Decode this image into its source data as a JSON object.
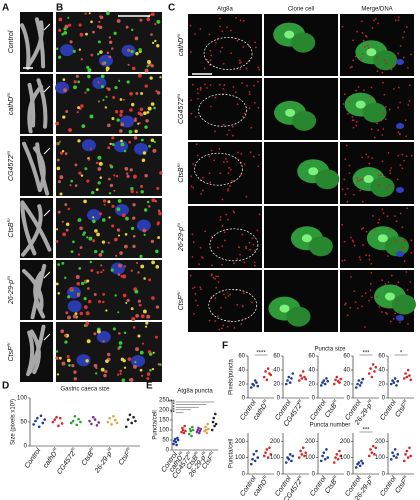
{
  "panel_letters": [
    "A",
    "B",
    "C",
    "D",
    "E",
    "F"
  ],
  "genotypes": [
    "Control",
    "cathD",
    "CG4572",
    "CtsB",
    "26-29-p",
    "CtsF"
  ],
  "genotype_suffixes": [
    null,
    "RI",
    "RI",
    "RI",
    "RI",
    "RI"
  ],
  "panel_c_columns": [
    "Atg8a",
    "Clone cell",
    "Merge/DNA"
  ],
  "panel_f_titles": [
    "Puncta size",
    "Puncta number"
  ],
  "chart_data": [
    {
      "type": "strip",
      "title": "Gastric caeca size",
      "ylabel": "Size (pixels x10³)",
      "categories": [
        "Control",
        "cathD",
        "CG4572",
        "CtsB",
        "26-29-p",
        "CtsF"
      ],
      "category_suffixes": [
        null,
        "RI",
        "RI",
        "RI",
        "RI",
        "RI"
      ],
      "colors": [
        "#1f3a93",
        "#d62728",
        "#2ca02c",
        "#7b3294",
        "#e6a23c",
        "#222222"
      ],
      "values": [
        [
          45,
          52,
          58,
          40,
          63,
          48,
          55
        ],
        [
          50,
          55,
          60,
          42,
          58,
          47
        ],
        [
          48,
          52,
          62,
          44,
          56,
          50
        ],
        [
          52,
          46,
          60,
          55,
          43,
          49
        ],
        [
          50,
          58,
          45,
          62,
          54,
          48
        ],
        [
          40,
          55,
          65,
          48,
          60,
          52
        ]
      ],
      "ylim": [
        0,
        100
      ],
      "yticks": [
        0,
        50,
        100
      ]
    },
    {
      "type": "strip",
      "title": "Atg8a puncta",
      "ylabel": "Puncta/cell",
      "categories": [
        "Control",
        "cathD",
        "CG4572",
        "CtsB",
        "26-29-p",
        "CtsF"
      ],
      "category_suffixes": [
        null,
        "RI",
        "RI",
        "RI",
        "RI",
        "RI"
      ],
      "colors": [
        "#1f3a93",
        "#d62728",
        "#2ca02c",
        "#7b3294",
        "#e6a23c",
        "#222222"
      ],
      "values": [
        [
          30,
          45,
          55,
          40,
          25,
          60,
          50
        ],
        [
          90,
          110,
          100,
          85,
          120,
          95
        ],
        [
          80,
          105,
          95,
          70,
          115,
          100
        ],
        [
          90,
          100,
          110,
          85,
          95,
          105
        ],
        [
          95,
          115,
          100,
          85,
          130,
          105
        ],
        [
          100,
          140,
          160,
          120,
          180,
          130
        ]
      ],
      "ylim": [
        0,
        250
      ],
      "yticks": [
        0,
        50,
        100,
        150,
        200,
        250
      ],
      "annotations": [
        "**",
        "*",
        "*",
        "*",
        "***"
      ]
    },
    {
      "type": "strip",
      "ylabel": "Pixels/puncta",
      "categories": [
        "Control",
        "cathD"
      ],
      "category_suffixes": [
        null,
        "RI"
      ],
      "colors": [
        "#1f3a93",
        "#d62728"
      ],
      "values": [
        [
          15,
          20,
          18,
          25,
          22,
          17
        ],
        [
          30,
          38,
          26,
          42,
          35,
          33
        ]
      ],
      "ylim": [
        0,
        60
      ],
      "yticks": [
        0,
        20,
        40,
        60
      ],
      "annotation": "****"
    },
    {
      "type": "strip",
      "categories": [
        "Control",
        "CG4572"
      ],
      "category_suffixes": [
        null,
        "RI"
      ],
      "colors": [
        "#1f3a93",
        "#d62728"
      ],
      "values": [
        [
          20,
          25,
          30,
          22,
          28,
          35
        ],
        [
          25,
          32,
          28,
          38,
          30,
          27
        ]
      ],
      "ylim": [
        0,
        60
      ],
      "yticks": [
        0,
        20,
        40,
        60
      ]
    },
    {
      "type": "strip",
      "categories": [
        "Control",
        "CtsB"
      ],
      "category_suffixes": [
        null,
        "RI"
      ],
      "colors": [
        "#1f3a93",
        "#d62728"
      ],
      "values": [
        [
          18,
          22,
          25,
          20,
          28,
          24
        ],
        [
          20,
          26,
          30,
          24,
          22,
          27
        ]
      ],
      "ylim": [
        0,
        60
      ],
      "yticks": [
        0,
        20,
        40,
        60
      ]
    },
    {
      "type": "strip",
      "categories": [
        "Control",
        "26-29-p"
      ],
      "category_suffixes": [
        null,
        "RI"
      ],
      "colors": [
        "#1f3a93",
        "#d62728"
      ],
      "values": [
        [
          15,
          20,
          25,
          18,
          22,
          27
        ],
        [
          35,
          42,
          30,
          48,
          38,
          44
        ]
      ],
      "ylim": [
        0,
        60
      ],
      "yticks": [
        0,
        20,
        40,
        60
      ],
      "annotation": "***"
    },
    {
      "type": "strip",
      "categories": [
        "Control",
        "CtsF"
      ],
      "category_suffixes": [
        null,
        "RI"
      ],
      "colors": [
        "#1f3a93",
        "#d62728"
      ],
      "values": [
        [
          20,
          25,
          22,
          28,
          18,
          24
        ],
        [
          28,
          35,
          30,
          40,
          32,
          26
        ]
      ],
      "ylim": [
        0,
        60
      ],
      "yticks": [
        0,
        20,
        40,
        60
      ],
      "annotation": "*"
    },
    {
      "type": "strip",
      "ylabel": "Puncta/cell",
      "categories": [
        "Control",
        "cathD"
      ],
      "category_suffixes": [
        null,
        "RI"
      ],
      "colors": [
        "#1f3a93",
        "#d62728"
      ],
      "values": [
        [
          60,
          90,
          120,
          80,
          140,
          100
        ],
        [
          110,
          130,
          150,
          100,
          160,
          120
        ]
      ],
      "ylim": [
        0,
        250
      ],
      "yticks": [
        0,
        100,
        200
      ]
    },
    {
      "type": "strip",
      "categories": [
        "Control",
        "CG4572"
      ],
      "category_suffixes": [
        null,
        "RI"
      ],
      "colors": [
        "#1f3a93",
        "#d62728"
      ],
      "values": [
        [
          70,
          100,
          90,
          120,
          80,
          110
        ],
        [
          100,
          140,
          120,
          160,
          110,
          130
        ]
      ],
      "ylim": [
        0,
        250
      ],
      "yticks": [
        0,
        100,
        200
      ]
    },
    {
      "type": "strip",
      "categories": [
        "Control",
        "CtsB"
      ],
      "category_suffixes": [
        null,
        "RI"
      ],
      "colors": [
        "#1f3a93",
        "#d62728"
      ],
      "values": [
        [
          80,
          110,
          130,
          90,
          150,
          100
        ],
        [
          70,
          100,
          120,
          90,
          140,
          110
        ]
      ],
      "ylim": [
        0,
        250
      ],
      "yticks": [
        0,
        100,
        200
      ]
    },
    {
      "type": "strip",
      "categories": [
        "Control",
        "26-29-p"
      ],
      "category_suffixes": [
        null,
        "RI"
      ],
      "colors": [
        "#1f3a93",
        "#d62728"
      ],
      "values": [
        [
          40,
          60,
          70,
          50,
          80,
          65
        ],
        [
          110,
          150,
          130,
          170,
          120,
          160
        ]
      ],
      "ylim": [
        0,
        250
      ],
      "yticks": [
        0,
        100,
        200
      ],
      "annotation": "***"
    },
    {
      "type": "strip",
      "categories": [
        "Control",
        "CtsF"
      ],
      "category_suffixes": [
        null,
        "RI"
      ],
      "colors": [
        "#1f3a93",
        "#d62728"
      ],
      "values": [
        [
          90,
          130,
          110,
          150,
          100,
          120
        ],
        [
          80,
          120,
          140,
          100,
          160,
          110
        ]
      ],
      "ylim": [
        0,
        250
      ],
      "yticks": [
        0,
        100,
        200
      ]
    }
  ]
}
